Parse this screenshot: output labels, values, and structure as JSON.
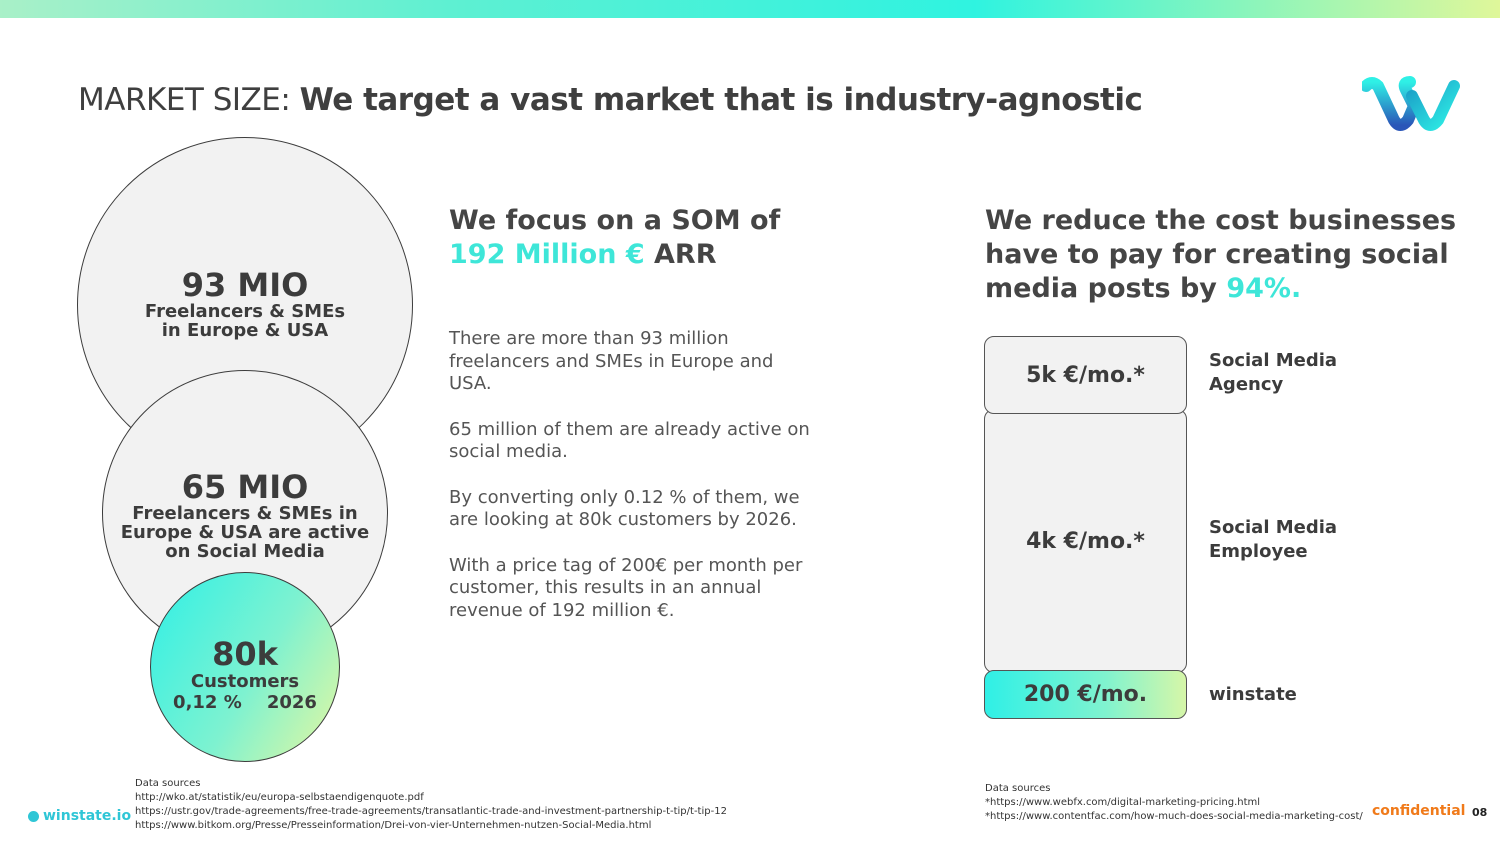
{
  "header": {
    "title_lead": "MARKET SIZE:",
    "title_bold": "We target a vast market that is industry-agnostic"
  },
  "logo": {
    "icon": "winstate-w-logo-icon",
    "colors": [
      "#2ff0e6",
      "#1ba0c8",
      "#2a56b8"
    ]
  },
  "market_circles": {
    "tam": {
      "value": "93 MIO",
      "line1": "Freelancers & SMEs",
      "line2": "in Europe & USA"
    },
    "sam": {
      "value": "65 MIO",
      "line1": "Freelancers & SMEs in",
      "line2": "Europe & USA are active",
      "line3": "on Social Media"
    },
    "som": {
      "value": "80k",
      "line1": "Customers",
      "percent": "0,12 %",
      "year": "2026"
    }
  },
  "som_section": {
    "heading_part1": "We focus on a SOM of",
    "heading_accent": "192 Million €",
    "heading_part2": "ARR",
    "paragraphs": [
      "There are more than 93 million freelancers and SMEs in Europe and USA.",
      "65 million of them are already active on social media.",
      "By converting only 0.12 % of them, we are looking at 80k customers by 2026.",
      "With a price tag of 200€ per month per customer, this results in an annual revenue of 192 million €."
    ]
  },
  "cost_section": {
    "heading_line1": "We reduce the cost businesses",
    "heading_line2": "have to pay for creating social",
    "heading_line3": "media posts by",
    "heading_accent": "94%.",
    "bars": [
      {
        "price": "5k €/mo.*",
        "label_line1": "Social Media",
        "label_line2": "Agency"
      },
      {
        "price": "4k €/mo.*",
        "label_line1": "Social Media",
        "label_line2": "Employee"
      },
      {
        "price": "200 €/mo.",
        "label_line1": "winstate",
        "label_line2": ""
      }
    ]
  },
  "sources_left": {
    "title": "Data sources",
    "links": [
      "http://wko.at/statistik/eu/europa-selbstaendigenquote.pdf",
      "https://ustr.gov/trade-agreements/free-trade-agreements/transatlantic-trade-and-investment-partnership-t-tip/t-tip-12",
      "https://www.bitkom.org/Presse/Presseinformation/Drei-von-vier-Unternehmen-nutzen-Social-Media.html"
    ]
  },
  "sources_right": {
    "title": "Data sources",
    "links": [
      "*https://www.webfx.com/digital-marketing-pricing.html",
      "*https://www.contentfac.com/how-much-does-social-media-marketing-cost/"
    ]
  },
  "footer": {
    "brand": "winstate.io",
    "confidential": "confidential",
    "page_number": "08"
  },
  "colors": {
    "accent": "#3ee6d8",
    "confidential": "#f07a1a",
    "text": "#454545"
  }
}
